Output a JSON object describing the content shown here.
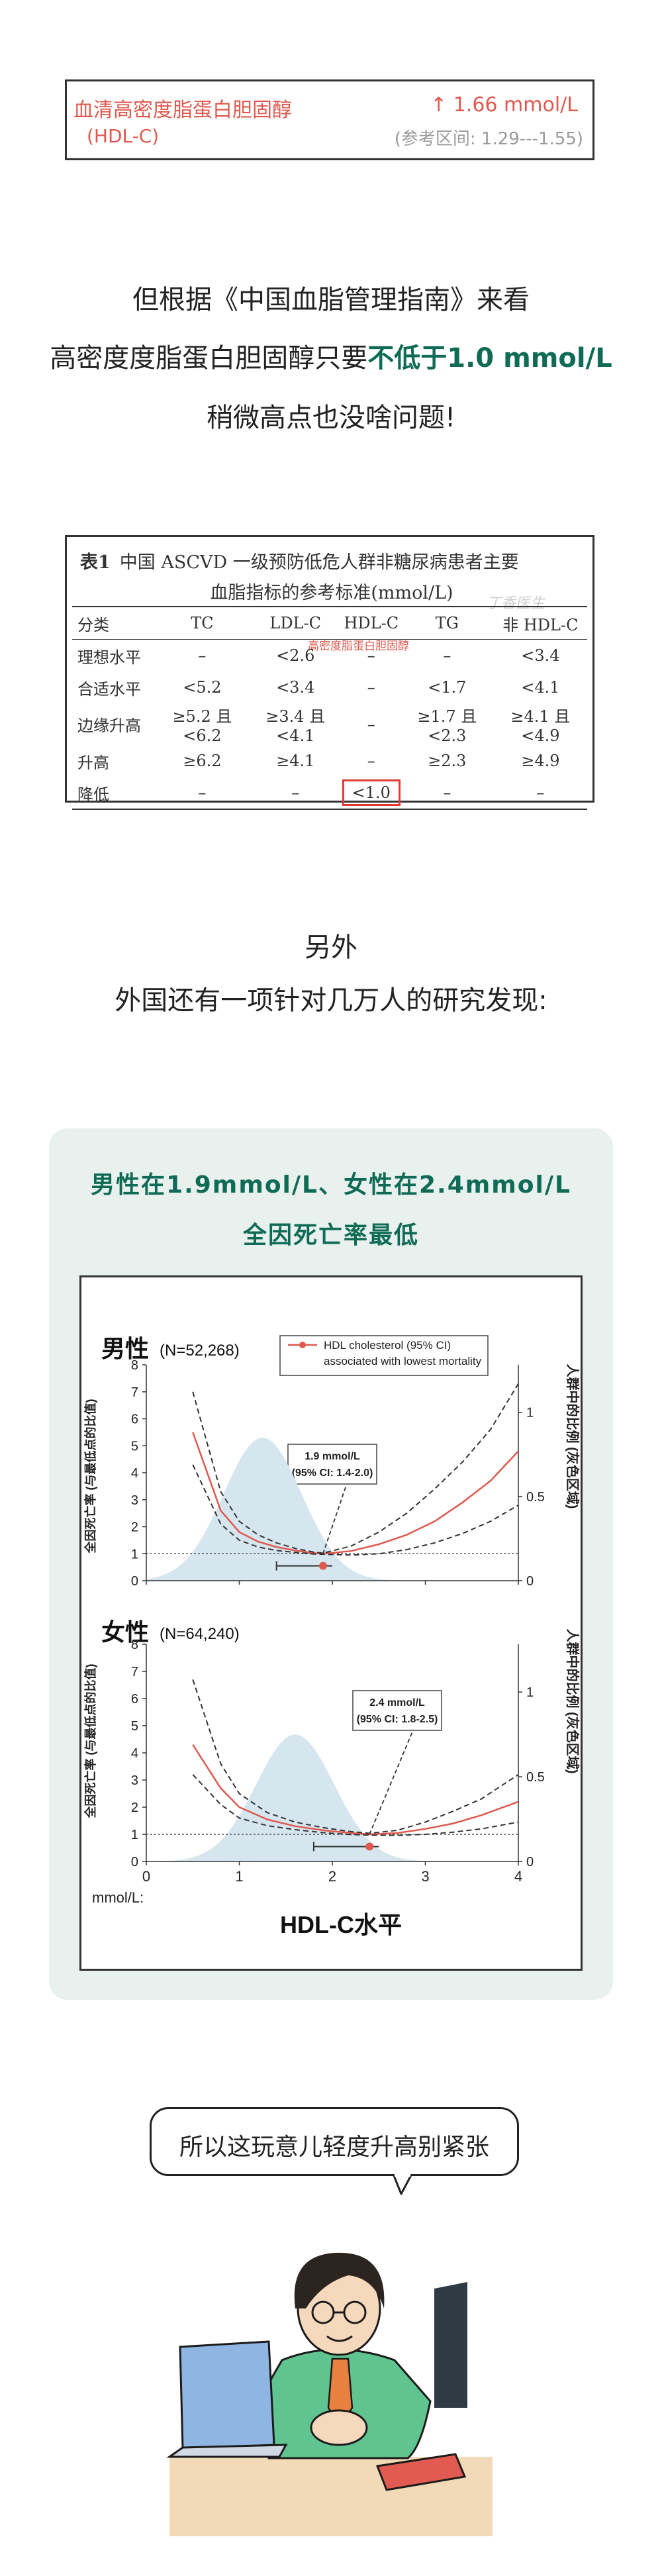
{
  "lab_card": {
    "name": "血清高密度脂蛋白胆固醇",
    "abbr": "(HDL-C)",
    "value": "↑ 1.66 mmol/L",
    "reference": "(参考区间: 1.29---1.55)"
  },
  "intro": {
    "line1": "但根据《中国血脂管理指南》来看",
    "line2_pre": "高密度度脂蛋白胆固醇只要",
    "line2_highlight": "不低于1.0 mmol/L",
    "line3": "稍微高点也没啥问题!"
  },
  "table": {
    "label": "表1",
    "title": "中国 ASCVD 一级预防低危人群非糖尿病患者主要",
    "subtitle": "血脂指标的参考标准(mmol/L)",
    "watermark": "丁香医生",
    "tag": "高密度脂蛋白胆固醇",
    "headers": [
      "分类",
      "TC",
      "LDL-C",
      "HDL-C",
      "TG",
      "非 HDL-C"
    ],
    "rows": [
      [
        "理想水平",
        "–",
        "<2.6",
        "–",
        "–",
        "<3.4"
      ],
      [
        "合适水平",
        "<5.2",
        "<3.4",
        "–",
        "<1.7",
        "<4.1"
      ],
      [
        "边缘升高",
        "≥5.2 且<6.2",
        "≥3.4 且<4.1",
        "–",
        "≥1.7 且<2.3",
        "≥4.1 且<4.9"
      ],
      [
        "升高",
        "≥6.2",
        "≥4.1",
        "–",
        "≥2.3",
        "≥4.9"
      ],
      [
        "降低",
        "–",
        "–",
        "<1.0",
        "–",
        "–"
      ]
    ]
  },
  "transition": {
    "line1": "另外",
    "line2": "外国还有一项针对几万人的研究发现:"
  },
  "study": {
    "title1": "男性在1.9mmol/L、女性在2.4mmol/L",
    "title2": "全因死亡率最低",
    "legend_line1": "HDL cholesterol (95% CI)",
    "legend_line2": "associated with lowest mortality",
    "y_left": "全因死亡率 (与最低点的比值)",
    "y_right": "人群中的比例 (灰色区域)",
    "x_unit": "mmol/L:",
    "x_label": "HDL-C水平",
    "colors": {
      "red": "#e0594f",
      "grey_area": "#d6e6ee",
      "accent": "#0f6b55"
    },
    "men": {
      "label": "男性",
      "n": "(N=52,268)",
      "box_line1": "1.9 mmol/L",
      "box_line2": "(95% CI: 1.4-2.0)",
      "opt": 1.9,
      "ci": [
        1.4,
        2.0
      ]
    },
    "women": {
      "label": "女性",
      "n": "(N=64,240)",
      "box_line1": "2.4 mmol/L",
      "box_line2": "(95% CI: 1.8-2.5)",
      "opt": 2.4,
      "ci": [
        1.8,
        2.5
      ]
    },
    "chart_data": [
      {
        "type": "line",
        "title": "男性 (N=52,268)",
        "xlabel": "HDL-C水平",
        "ylabel": "全因死亡率 (与最低点的比值)",
        "xlim": [
          0,
          4
        ],
        "ylim": [
          0,
          8
        ],
        "x_ticks": [
          0,
          1,
          2,
          3,
          4
        ],
        "y_ticks": [
          0,
          1,
          2,
          3,
          4,
          5,
          6,
          7,
          8
        ],
        "y2_ticks": [
          0,
          0.5,
          1
        ],
        "x": [
          0.5,
          0.8,
          1.0,
          1.2,
          1.4,
          1.6,
          1.8,
          1.9,
          2.2,
          2.5,
          2.8,
          3.1,
          3.4,
          3.7,
          4.0
        ],
        "series": [
          {
            "values": [
              5.5,
              2.6,
              1.8,
              1.45,
              1.25,
              1.12,
              1.02,
              1.0,
              1.1,
              1.35,
              1.7,
              2.2,
              2.9,
              3.7,
              4.8
            ]
          },
          {
            "values": [
              7.0,
              3.3,
              2.2,
              1.7,
              1.4,
              1.2,
              1.06,
              1.02,
              1.28,
              1.8,
              2.5,
              3.4,
              4.4,
              5.6,
              7.3
            ]
          },
          {
            "values": [
              4.3,
              2.1,
              1.5,
              1.25,
              1.12,
              1.05,
              0.99,
              0.98,
              0.95,
              1.0,
              1.15,
              1.4,
              1.75,
              2.2,
              2.8
            ]
          }
        ],
        "hline": 1,
        "population_peak": {
          "x": 1.25,
          "share": 0.85
        }
      },
      {
        "type": "line",
        "title": "女性 (N=64,240)",
        "xlabel": "HDL-C水平",
        "ylabel": "全因死亡率 (与最低点的比值)",
        "xlim": [
          0,
          4
        ],
        "ylim": [
          0,
          8
        ],
        "x_ticks": [
          0,
          1,
          2,
          3,
          4
        ],
        "y_ticks": [
          0,
          1,
          2,
          3,
          4,
          5,
          6,
          7,
          8
        ],
        "y2_ticks": [
          0,
          0.5,
          1
        ],
        "x": [
          0.5,
          0.8,
          1.0,
          1.3,
          1.6,
          1.9,
          2.2,
          2.4,
          2.7,
          3.0,
          3.3,
          3.6,
          4.0
        ],
        "series": [
          {
            "values": [
              4.3,
              2.7,
              2.0,
              1.55,
              1.3,
              1.15,
              1.05,
              1.0,
              1.05,
              1.2,
              1.4,
              1.7,
              2.2
            ]
          },
          {
            "values": [
              6.7,
              3.6,
              2.5,
              1.8,
              1.45,
              1.25,
              1.1,
              1.04,
              1.15,
              1.45,
              1.85,
              2.3,
              3.2
            ]
          },
          {
            "values": [
              3.2,
              2.1,
              1.6,
              1.32,
              1.17,
              1.06,
              0.99,
              0.97,
              0.96,
              1.0,
              1.08,
              1.2,
              1.45
            ]
          }
        ],
        "hline": 1,
        "population_peak": {
          "x": 1.6,
          "share": 0.75
        }
      }
    ]
  },
  "bubble": {
    "text": "所以这玩意儿轻度升高别紧张"
  }
}
